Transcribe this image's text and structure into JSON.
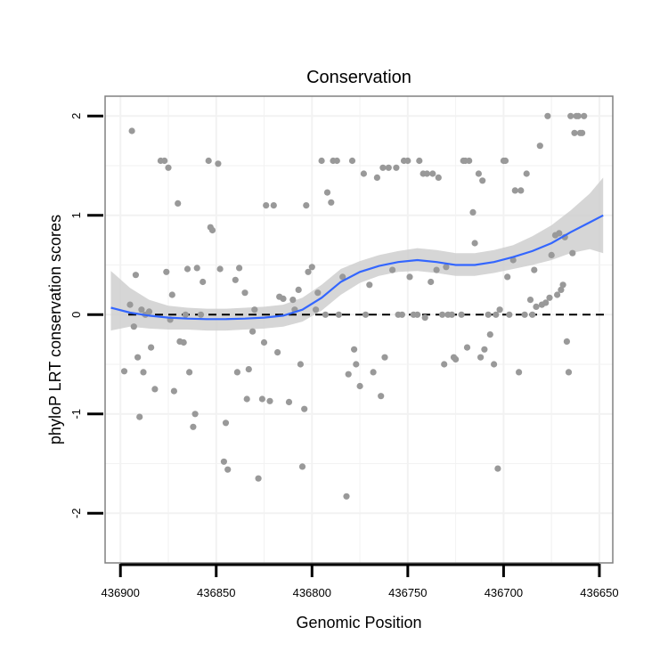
{
  "chart_data": {
    "type": "scatter",
    "title": "Conservation",
    "xlabel": "Genomic Position",
    "ylabel": "phyloP LRT conservation scores",
    "xlim": [
      436908,
      436643
    ],
    "ylim": [
      -2.5,
      2.2
    ],
    "x_reversed": true,
    "x_ticks": [
      436900,
      436850,
      436800,
      436750,
      436700,
      436650
    ],
    "x_tick_labels": [
      "436900",
      "436850",
      "436800",
      "436750",
      "436700",
      "436650"
    ],
    "y_ticks": [
      -2,
      -1,
      0,
      1,
      2
    ],
    "y_tick_labels": [
      "-2",
      "-1",
      "0",
      "1",
      "2"
    ],
    "grid": true,
    "reference_line": {
      "y": 0,
      "style": "dashed"
    },
    "colors": {
      "points": "#999999",
      "smooth_line": "#3366FF",
      "confidence_band": "#cccccc",
      "panel_border": "#808080",
      "grid": "#f2f2f2"
    },
    "points": [
      [
        436894,
        1.85
      ],
      [
        436892,
        0.4
      ],
      [
        436889,
        0.05
      ],
      [
        436893,
        -0.12
      ],
      [
        436895,
        0.1
      ],
      [
        436898,
        -0.57
      ],
      [
        436891,
        -0.43
      ],
      [
        436890,
        -1.03
      ],
      [
        436888,
        -0.58
      ],
      [
        436887,
        0.0
      ],
      [
        436885,
        0.03
      ],
      [
        436882,
        -0.75
      ],
      [
        436884,
        -0.33
      ],
      [
        436879,
        1.55
      ],
      [
        436877,
        1.55
      ],
      [
        436875,
        1.48
      ],
      [
        436876,
        0.43
      ],
      [
        436874,
        -0.05
      ],
      [
        436873,
        0.2
      ],
      [
        436872,
        -0.77
      ],
      [
        436870,
        1.12
      ],
      [
        436869,
        -0.27
      ],
      [
        436867,
        -0.28
      ],
      [
        436866,
        0.0
      ],
      [
        436865,
        0.46
      ],
      [
        436864,
        -0.58
      ],
      [
        436862,
        -1.13
      ],
      [
        436861,
        -1.0
      ],
      [
        436860,
        0.47
      ],
      [
        436858,
        0.0
      ],
      [
        436857,
        0.33
      ],
      [
        436854,
        1.55
      ],
      [
        436853,
        0.88
      ],
      [
        436852,
        0.85
      ],
      [
        436849,
        1.52
      ],
      [
        436848,
        0.46
      ],
      [
        436846,
        -1.48
      ],
      [
        436845,
        -1.09
      ],
      [
        436844,
        -1.56
      ],
      [
        436840,
        0.35
      ],
      [
        436839,
        -0.58
      ],
      [
        436838,
        0.47
      ],
      [
        436835,
        0.22
      ],
      [
        436834,
        -0.85
      ],
      [
        436833,
        -0.55
      ],
      [
        436831,
        -0.17
      ],
      [
        436830,
        0.05
      ],
      [
        436828,
        -1.65
      ],
      [
        436826,
        -0.85
      ],
      [
        436825,
        -0.28
      ],
      [
        436824,
        1.1
      ],
      [
        436822,
        -0.87
      ],
      [
        436820,
        1.1
      ],
      [
        436818,
        -0.38
      ],
      [
        436817,
        0.18
      ],
      [
        436815,
        0.16
      ],
      [
        436812,
        -0.88
      ],
      [
        436810,
        0.15
      ],
      [
        436809,
        0.05
      ],
      [
        436807,
        0.25
      ],
      [
        436806,
        -0.5
      ],
      [
        436805,
        -1.53
      ],
      [
        436804,
        -0.95
      ],
      [
        436803,
        1.1
      ],
      [
        436802,
        0.43
      ],
      [
        436800,
        0.48
      ],
      [
        436798,
        0.05
      ],
      [
        436797,
        0.22
      ],
      [
        436795,
        1.55
      ],
      [
        436793,
        0.0
      ],
      [
        436792,
        1.23
      ],
      [
        436790,
        1.13
      ],
      [
        436789,
        1.55
      ],
      [
        436787,
        1.55
      ],
      [
        436786,
        0.0
      ],
      [
        436784,
        0.38
      ],
      [
        436782,
        -1.83
      ],
      [
        436781,
        -0.6
      ],
      [
        436779,
        1.55
      ],
      [
        436778,
        -0.35
      ],
      [
        436777,
        -0.5
      ],
      [
        436775,
        -0.72
      ],
      [
        436773,
        1.42
      ],
      [
        436772,
        0.0
      ],
      [
        436770,
        0.3
      ],
      [
        436768,
        -0.58
      ],
      [
        436766,
        1.38
      ],
      [
        436764,
        -0.82
      ],
      [
        436763,
        1.48
      ],
      [
        436762,
        -0.43
      ],
      [
        436760,
        1.48
      ],
      [
        436758,
        0.45
      ],
      [
        436756,
        1.48
      ],
      [
        436755,
        0.0
      ],
      [
        436753,
        0.0
      ],
      [
        436752,
        1.55
      ],
      [
        436750,
        1.55
      ],
      [
        436749,
        0.38
      ],
      [
        436747,
        0.0
      ],
      [
        436745,
        0.0
      ],
      [
        436744,
        1.55
      ],
      [
        436742,
        1.42
      ],
      [
        436741,
        -0.03
      ],
      [
        436740,
        1.42
      ],
      [
        436738,
        0.33
      ],
      [
        436737,
        1.42
      ],
      [
        436735,
        0.45
      ],
      [
        436734,
        1.38
      ],
      [
        436732,
        0.0
      ],
      [
        436731,
        -0.5
      ],
      [
        436730,
        0.48
      ],
      [
        436729,
        0.0
      ],
      [
        436727,
        0.0
      ],
      [
        436726,
        -0.43
      ],
      [
        436725,
        -0.45
      ],
      [
        436722,
        0.0
      ],
      [
        436721,
        1.55
      ],
      [
        436720,
        1.55
      ],
      [
        436719,
        -0.33
      ],
      [
        436718,
        1.55
      ],
      [
        436716,
        1.03
      ],
      [
        436715,
        0.72
      ],
      [
        436713,
        1.42
      ],
      [
        436712,
        -0.43
      ],
      [
        436711,
        1.35
      ],
      [
        436710,
        -0.35
      ],
      [
        436708,
        0.0
      ],
      [
        436707,
        -0.2
      ],
      [
        436705,
        -0.5
      ],
      [
        436704,
        0.0
      ],
      [
        436703,
        -1.55
      ],
      [
        436702,
        0.05
      ],
      [
        436700,
        1.55
      ],
      [
        436699,
        1.55
      ],
      [
        436698,
        0.38
      ],
      [
        436697,
        0.0
      ],
      [
        436695,
        0.55
      ],
      [
        436694,
        1.25
      ],
      [
        436692,
        -0.58
      ],
      [
        436691,
        1.25
      ],
      [
        436689,
        0.0
      ],
      [
        436688,
        1.42
      ],
      [
        436686,
        0.15
      ],
      [
        436685,
        0.0
      ],
      [
        436684,
        0.45
      ],
      [
        436683,
        0.08
      ],
      [
        436681,
        1.7
      ],
      [
        436680,
        0.1
      ],
      [
        436678,
        0.12
      ],
      [
        436677,
        2.0
      ],
      [
        436676,
        0.17
      ],
      [
        436675,
        0.6
      ],
      [
        436673,
        0.8
      ],
      [
        436672,
        0.2
      ],
      [
        436671,
        0.82
      ],
      [
        436670,
        0.25
      ],
      [
        436669,
        0.3
      ],
      [
        436668,
        0.78
      ],
      [
        436667,
        -0.27
      ],
      [
        436666,
        -0.58
      ],
      [
        436665,
        2.0
      ],
      [
        436664,
        0.62
      ],
      [
        436663,
        1.83
      ],
      [
        436662,
        2.0
      ],
      [
        436661,
        2.0
      ],
      [
        436660,
        1.83
      ],
      [
        436659,
        1.83
      ],
      [
        436658,
        2.0
      ]
    ],
    "smooth": {
      "x": [
        436905,
        436895,
        436885,
        436875,
        436865,
        436855,
        436845,
        436835,
        436825,
        436815,
        436805,
        436795,
        436785,
        436775,
        436765,
        436755,
        436745,
        436735,
        436725,
        436715,
        436705,
        436695,
        436685,
        436675,
        436665,
        436655,
        436648
      ],
      "y": [
        0.07,
        0.02,
        -0.01,
        -0.03,
        -0.04,
        -0.045,
        -0.045,
        -0.04,
        -0.03,
        -0.01,
        0.05,
        0.17,
        0.33,
        0.43,
        0.49,
        0.53,
        0.55,
        0.53,
        0.5,
        0.5,
        0.53,
        0.58,
        0.64,
        0.72,
        0.83,
        0.93,
        1.0
      ],
      "lower": [
        -0.16,
        -0.12,
        -0.14,
        -0.15,
        -0.15,
        -0.16,
        -0.16,
        -0.15,
        -0.14,
        -0.12,
        -0.07,
        0.04,
        0.2,
        0.32,
        0.39,
        0.43,
        0.44,
        0.42,
        0.39,
        0.39,
        0.42,
        0.46,
        0.5,
        0.55,
        0.62,
        0.66,
        0.62
      ],
      "upper": [
        0.44,
        0.27,
        0.15,
        0.09,
        0.07,
        0.06,
        0.06,
        0.07,
        0.08,
        0.1,
        0.17,
        0.3,
        0.46,
        0.54,
        0.6,
        0.64,
        0.67,
        0.65,
        0.62,
        0.62,
        0.65,
        0.7,
        0.79,
        0.9,
        1.05,
        1.22,
        1.38
      ]
    }
  }
}
